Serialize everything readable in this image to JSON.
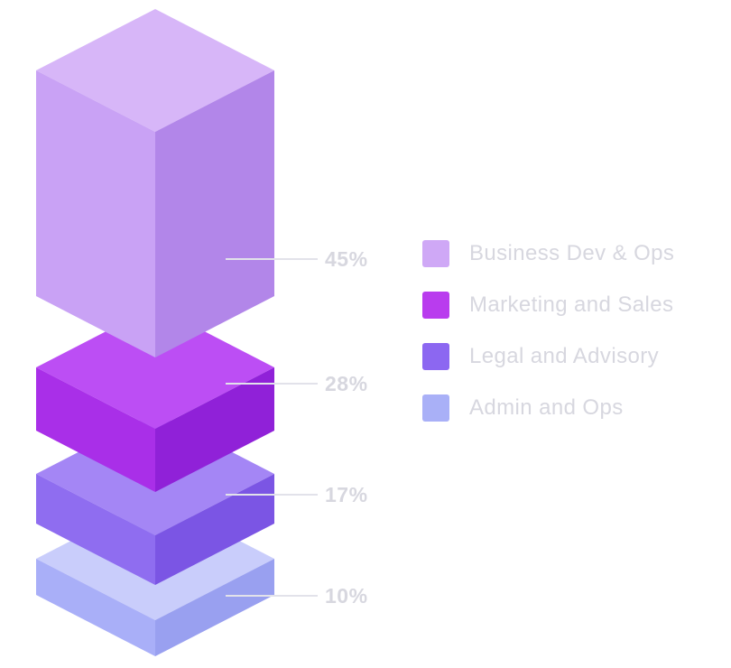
{
  "chart_data": {
    "type": "bar",
    "variant": "isometric-3d-stacked-column",
    "title": "",
    "categories": [
      "Business Dev & Ops",
      "Marketing and Sales",
      "Legal and Advisory",
      "Admin and Ops"
    ],
    "values": [
      45,
      28,
      17,
      10
    ],
    "unit": "%",
    "axes": "none",
    "grid": false,
    "legend_position": "right",
    "background": "#ffffff",
    "text_color": "#d7d7df",
    "leader_line_color": "#e2e2ea",
    "segments": [
      {
        "name": "Business Dev & Ops",
        "value": 45,
        "label": "45%",
        "color_top": "#d7b6f8",
        "color_left": "#c9a2f5",
        "color_right": "#b286e9"
      },
      {
        "name": "Marketing and Sales",
        "value": 28,
        "label": "28%",
        "color_top": "#bc4ef4",
        "color_left": "#a92fe8",
        "color_right": "#9021d8"
      },
      {
        "name": "Legal and Advisory",
        "value": 17,
        "label": "17%",
        "color_top": "#a486f5",
        "color_left": "#8f6df0",
        "color_right": "#7b55e4"
      },
      {
        "name": "Admin and Ops",
        "value": 10,
        "label": "10%",
        "color_top": "#c9cdfb",
        "color_left": "#a9aff8",
        "color_right": "#99a0f0"
      }
    ],
    "legend": [
      {
        "label": "Business Dev & Ops",
        "swatch": "#cfa8f6"
      },
      {
        "label": "Marketing and Sales",
        "swatch": "#b93cee"
      },
      {
        "label": "Legal and Advisory",
        "swatch": "#8c67f1"
      },
      {
        "label": "Admin and Ops",
        "swatch": "#a9b0f7"
      }
    ]
  }
}
